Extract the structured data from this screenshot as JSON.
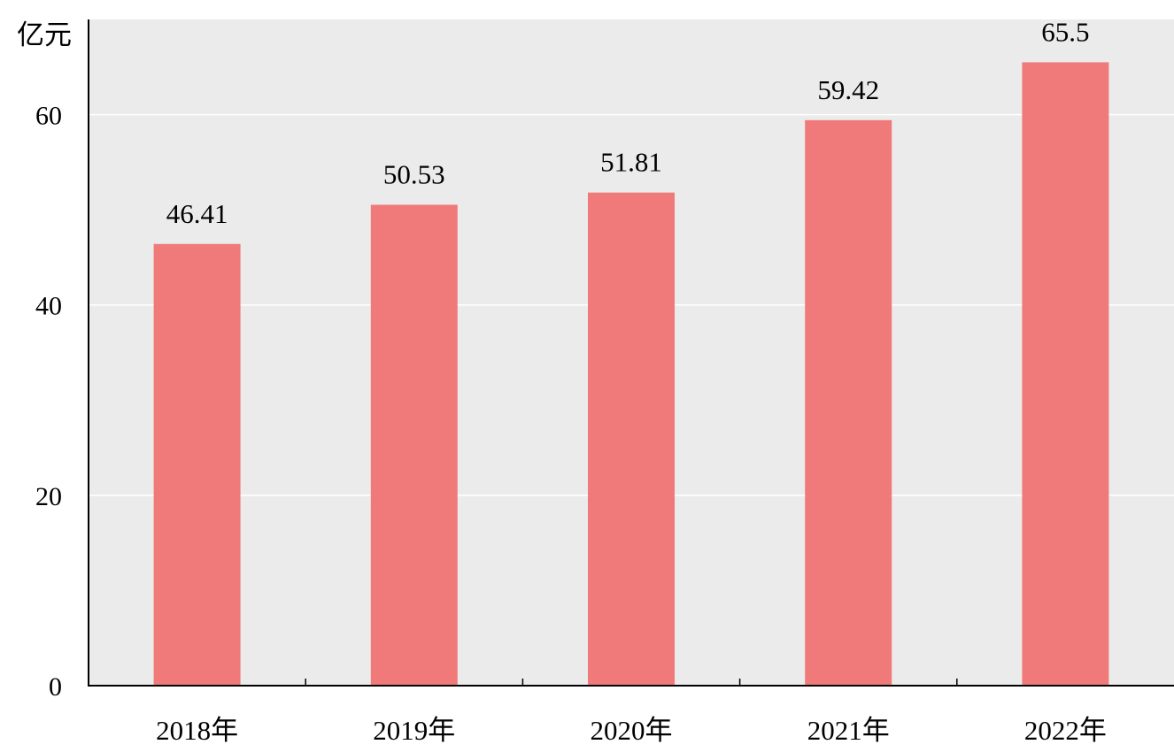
{
  "chart_data": {
    "type": "bar",
    "unit_label": "亿元",
    "categories": [
      "2018年",
      "2019年",
      "2020年",
      "2021年",
      "2022年"
    ],
    "values": [
      46.41,
      50.53,
      51.81,
      59.42,
      65.5
    ],
    "value_labels": [
      "46.41",
      "50.53",
      "51.81",
      "59.42",
      "65.5"
    ],
    "ylim": [
      0,
      70
    ],
    "yticks": [
      0,
      20,
      40,
      60
    ],
    "ytick_labels": [
      "0",
      "20",
      "40",
      "60"
    ],
    "grid": true,
    "colors": {
      "bar": "#f07a7a",
      "plot_background": "#ebebeb",
      "grid": "#ffffff",
      "axis": "#000000"
    }
  }
}
